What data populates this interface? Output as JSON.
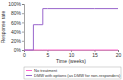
{
  "chart_data": {
    "type": "line",
    "x_label": "Time (weeks)",
    "y_label": "Response rate",
    "x": [
      0,
      1,
      2,
      3,
      4,
      5,
      10,
      15,
      20
    ],
    "series": [
      {
        "name": "No treatment",
        "color": "#ff66cc",
        "values": [
          0,
          0,
          0,
          0,
          0,
          0,
          0,
          0,
          0
        ]
      },
      {
        "name": "DMW with options (as DMW for non-responders)",
        "color": "#9966cc",
        "values": [
          0,
          0,
          55,
          55,
          90,
          90,
          90,
          90,
          90
        ]
      }
    ],
    "line_style": "step",
    "xlim": [
      0,
      20
    ],
    "xticks": [
      0,
      5,
      10,
      15,
      20
    ],
    "ylim": [
      0,
      100
    ],
    "yticks": [
      {
        "value": 0,
        "label": "0%"
      },
      {
        "value": 20,
        "label": "20%"
      },
      {
        "value": 40,
        "label": "40%"
      },
      {
        "value": 60,
        "label": "60%"
      },
      {
        "value": 80,
        "label": "80%"
      },
      {
        "value": 100,
        "label": "100%"
      }
    ],
    "grid": false,
    "legend": "bottom"
  }
}
